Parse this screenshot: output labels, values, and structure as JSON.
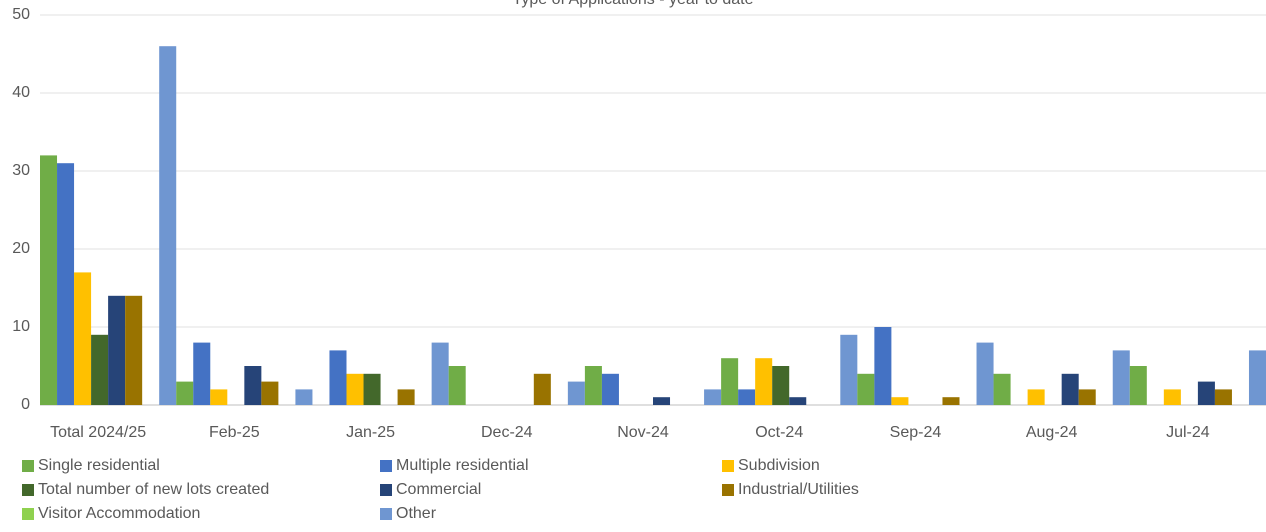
{
  "chart_data": {
    "type": "bar",
    "title": "Type of Applications - year to date",
    "categories": [
      "Total 2024/25",
      "Feb-25",
      "Jan-25",
      "Dec-24",
      "Nov-24",
      "Oct-24",
      "Sep-24",
      "Aug-24",
      "Jul-24"
    ],
    "series": [
      {
        "name": "Single residential",
        "color": "#70ad47",
        "values": [
          32,
          3,
          0,
          5,
          5,
          6,
          4,
          4,
          5
        ]
      },
      {
        "name": "Multiple residential",
        "color": "#4472c4",
        "values": [
          31,
          8,
          7,
          0,
          4,
          2,
          10,
          0,
          0
        ]
      },
      {
        "name": "Subdivision",
        "color": "#ffc000",
        "values": [
          17,
          2,
          4,
          0,
          0,
          6,
          1,
          2,
          2
        ]
      },
      {
        "name": "Total number of new lots created",
        "color": "#43682b",
        "values": [
          9,
          0,
          4,
          0,
          0,
          5,
          0,
          0,
          0
        ]
      },
      {
        "name": "Commercial",
        "color": "#264478",
        "values": [
          14,
          5,
          0,
          0,
          1,
          1,
          0,
          4,
          3
        ]
      },
      {
        "name": "Industrial/Utilities",
        "color": "#997300",
        "values": [
          14,
          3,
          2,
          4,
          0,
          0,
          1,
          2,
          2
        ]
      },
      {
        "name": "Visitor Accommodation",
        "color": "#8fd14f",
        "values": [
          0,
          0,
          0,
          0,
          0,
          0,
          0,
          0,
          0
        ]
      },
      {
        "name": "Other",
        "color": "#6f96d1",
        "values": [
          46,
          2,
          8,
          3,
          2,
          9,
          8,
          7,
          7
        ]
      }
    ],
    "ylim": [
      0,
      50
    ],
    "yticks": [
      0,
      10,
      20,
      30,
      40,
      50
    ],
    "grid": true,
    "legend": "bottom"
  }
}
